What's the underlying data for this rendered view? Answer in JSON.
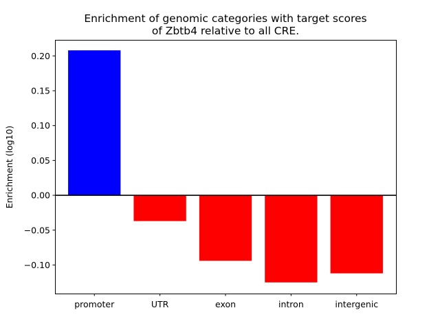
{
  "chart_data": {
    "type": "bar",
    "title_lines": [
      "Enrichment of genomic categories with target scores",
      "of Zbtb4 relative to all CRE."
    ],
    "xlabel": "",
    "ylabel": "Enrichment (log10)",
    "categories": [
      "promoter",
      "UTR",
      "exon",
      "intron",
      "intergenic"
    ],
    "values": [
      0.208,
      -0.037,
      -0.094,
      -0.125,
      -0.112
    ],
    "bar_colors": [
      "#0000ff",
      "#ff0000",
      "#ff0000",
      "#ff0000",
      "#ff0000"
    ],
    "ylim": [
      -0.141,
      0.223
    ],
    "yticks": [
      {
        "value": 0.2,
        "label": "0.20"
      },
      {
        "value": 0.15,
        "label": "0.15"
      },
      {
        "value": 0.1,
        "label": "0.10"
      },
      {
        "value": 0.05,
        "label": "0.05"
      },
      {
        "value": 0.0,
        "label": "0.00"
      },
      {
        "value": -0.05,
        "label": "−0.05"
      },
      {
        "value": -0.1,
        "label": "−0.10"
      }
    ],
    "reference_line": 0,
    "grid": false,
    "legend": null
  }
}
